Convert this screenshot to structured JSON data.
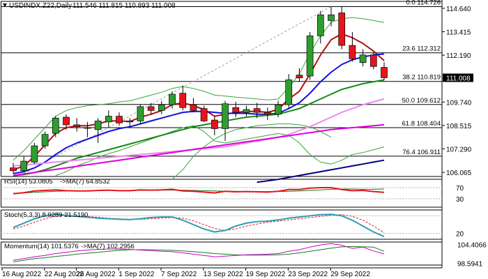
{
  "main_header": {
    "symbol": "USDINDX.Z22,Daily",
    "ohlc": "111.546 111.815 110.893 111.008"
  },
  "rsi_header": {
    "label": "RSI(14) 53.0805",
    "ma_label": "->MA(7) 64.8532"
  },
  "stoch_header": {
    "label": "Stoch(5,3,3) 8.9289 21.5190"
  },
  "momentum_header": {
    "label": "Momentum(14) 101.5376",
    "ma_label": "->MA(7) 102.2956"
  },
  "colors": {
    "up": "#2e9e2e",
    "down": "#e8141c",
    "ma_short": "#b01010",
    "ma_mid": "#1010e0",
    "ma_long": "#148a14",
    "ma_pink_light": "#ee88ee",
    "ma_magenta": "#dd00dd",
    "ma_navy": "#000080",
    "bollinger": "#3aa53a",
    "fibo": "#000000",
    "price_box": "#000000"
  },
  "chart_data": [
    {
      "type": "candlestick",
      "panel": "price",
      "title": "USDINDX.Z22,Daily",
      "x_tick_labels": [
        "16 Aug 2022",
        "22 Aug 2022",
        "26 Aug 2022",
        "1 Sep 2022",
        "7 Sep 2022",
        "13 Sep 2022",
        "19 Sep 2022",
        "23 Sep 2022",
        "29 Sep 2022"
      ],
      "y_tick_labels": [
        "114.640",
        "113.415",
        "112.190",
        "111.008",
        "109.740",
        "108.515",
        "107.290",
        "106.065"
      ],
      "ylim": [
        105.85,
        115.0
      ],
      "current_price": 111.008,
      "candles": [
        {
          "o": 106.3,
          "h": 106.55,
          "l": 106.0,
          "c": 106.15
        },
        {
          "o": 106.15,
          "h": 106.9,
          "l": 106.05,
          "c": 106.65
        },
        {
          "o": 106.6,
          "h": 107.6,
          "l": 106.5,
          "c": 107.45
        },
        {
          "o": 107.45,
          "h": 108.2,
          "l": 107.3,
          "c": 108.05
        },
        {
          "o": 108.1,
          "h": 109.0,
          "l": 107.9,
          "c": 108.9
        },
        {
          "o": 108.95,
          "h": 109.1,
          "l": 108.3,
          "c": 108.55
        },
        {
          "o": 108.55,
          "h": 108.9,
          "l": 108.2,
          "c": 108.45
        },
        {
          "o": 108.4,
          "h": 108.7,
          "l": 107.9,
          "c": 108.4
        },
        {
          "o": 108.3,
          "h": 108.9,
          "l": 107.6,
          "c": 108.75
        },
        {
          "o": 108.7,
          "h": 109.3,
          "l": 108.4,
          "c": 109.0
        },
        {
          "o": 109.0,
          "h": 109.2,
          "l": 108.5,
          "c": 108.65
        },
        {
          "o": 108.7,
          "h": 108.9,
          "l": 108.4,
          "c": 108.75
        },
        {
          "o": 108.75,
          "h": 109.6,
          "l": 108.6,
          "c": 109.5
        },
        {
          "o": 109.5,
          "h": 109.7,
          "l": 109.1,
          "c": 109.3
        },
        {
          "o": 109.3,
          "h": 109.8,
          "l": 109.1,
          "c": 109.6
        },
        {
          "o": 109.6,
          "h": 110.3,
          "l": 109.4,
          "c": 110.15
        },
        {
          "o": 110.2,
          "h": 110.6,
          "l": 109.3,
          "c": 109.45
        },
        {
          "o": 109.6,
          "h": 109.95,
          "l": 109.2,
          "c": 109.3
        },
        {
          "o": 109.4,
          "h": 109.55,
          "l": 108.7,
          "c": 108.75
        },
        {
          "o": 108.8,
          "h": 109.0,
          "l": 108.0,
          "c": 108.35
        },
        {
          "o": 108.35,
          "h": 109.8,
          "l": 107.7,
          "c": 109.65
        },
        {
          "o": 109.45,
          "h": 109.75,
          "l": 108.95,
          "c": 109.2
        },
        {
          "o": 109.2,
          "h": 109.55,
          "l": 109.0,
          "c": 109.35
        },
        {
          "o": 109.4,
          "h": 109.7,
          "l": 108.9,
          "c": 109.2
        },
        {
          "o": 109.2,
          "h": 109.45,
          "l": 108.8,
          "c": 109.1
        },
        {
          "o": 109.1,
          "h": 109.8,
          "l": 108.95,
          "c": 109.6
        },
        {
          "o": 109.6,
          "h": 111.2,
          "l": 109.4,
          "c": 110.9
        },
        {
          "o": 111.15,
          "h": 111.5,
          "l": 110.8,
          "c": 111.0
        },
        {
          "o": 111.1,
          "h": 113.4,
          "l": 110.9,
          "c": 113.2
        },
        {
          "o": 113.2,
          "h": 114.5,
          "l": 112.8,
          "c": 114.3
        },
        {
          "o": 114.0,
          "h": 114.7,
          "l": 113.7,
          "c": 114.3
        },
        {
          "o": 114.4,
          "h": 114.73,
          "l": 112.5,
          "c": 112.7
        },
        {
          "o": 112.7,
          "h": 113.4,
          "l": 111.85,
          "c": 112.0
        },
        {
          "o": 111.8,
          "h": 112.5,
          "l": 111.6,
          "c": 112.2
        },
        {
          "o": 112.2,
          "h": 112.35,
          "l": 111.45,
          "c": 111.6
        },
        {
          "o": 111.55,
          "h": 111.82,
          "l": 110.89,
          "c": 111.01
        }
      ],
      "moving_averages": [
        {
          "color": "#b01010",
          "values": [
            106.2,
            106.4,
            106.9,
            107.5,
            108.1,
            108.4,
            108.5,
            108.5,
            108.6,
            108.75,
            108.75,
            108.72,
            108.95,
            109.1,
            109.3,
            109.6,
            109.7,
            109.55,
            109.35,
            109.0,
            109.1,
            109.2,
            109.25,
            109.25,
            109.2,
            109.35,
            109.9,
            110.3,
            111.2,
            112.2,
            113.0,
            113.3,
            113.1,
            112.8,
            112.4,
            111.9
          ]
        },
        {
          "color": "#1010e0",
          "values": [
            106.0,
            106.1,
            106.3,
            106.6,
            107.0,
            107.35,
            107.6,
            107.8,
            108.0,
            108.2,
            108.35,
            108.45,
            108.6,
            108.75,
            108.9,
            109.05,
            109.2,
            109.25,
            109.25,
            109.2,
            109.15,
            109.15,
            109.15,
            109.1,
            109.1,
            109.15,
            109.4,
            109.7,
            110.2,
            110.8,
            111.3,
            111.7,
            111.95,
            112.1,
            112.2,
            112.25
          ]
        },
        {
          "color": "#148a14",
          "values": [
            105.9,
            105.95,
            106.05,
            106.2,
            106.4,
            106.6,
            106.8,
            106.95,
            107.1,
            107.25,
            107.4,
            107.55,
            107.7,
            107.85,
            108.0,
            108.15,
            108.3,
            108.45,
            108.55,
            108.65,
            108.75,
            108.85,
            108.95,
            109.0,
            109.05,
            109.1,
            109.25,
            109.4,
            109.65,
            109.9,
            110.15,
            110.4,
            110.55,
            110.7,
            110.8,
            110.9
          ]
        },
        {
          "color": "#ee88ee",
          "values": [
            106.4,
            106.45,
            106.5,
            106.55,
            106.6,
            106.65,
            106.7,
            106.75,
            106.8,
            106.85,
            106.9,
            106.95,
            107.0,
            107.05,
            107.1,
            107.15,
            107.2,
            107.25,
            107.3,
            107.35,
            107.4,
            107.5,
            107.6,
            107.7,
            107.8,
            107.9,
            108.05,
            108.25,
            108.45,
            108.7,
            108.95,
            109.2,
            109.4,
            109.6,
            109.75,
            109.9
          ]
        },
        {
          "color": "#dd00dd",
          "values": [
            105.9,
            105.98,
            106.06,
            106.14,
            106.22,
            106.3,
            106.38,
            106.46,
            106.54,
            106.62,
            106.7,
            106.78,
            106.86,
            106.94,
            107.02,
            107.1,
            107.18,
            107.26,
            107.34,
            107.42,
            107.5,
            107.58,
            107.66,
            107.74,
            107.82,
            107.9,
            107.98,
            108.06,
            108.14,
            108.22,
            108.3,
            108.35,
            108.4,
            108.45,
            108.5,
            108.55
          ]
        },
        {
          "color": "#000080",
          "start_index": 23,
          "values": [
            105.55,
            105.62,
            105.7,
            105.8,
            105.9,
            106.0,
            106.1,
            106.2,
            106.3,
            106.4,
            106.5,
            106.6,
            106.7
          ]
        }
      ],
      "bollinger": {
        "upper": [
          106.7,
          107.2,
          107.8,
          108.4,
          109.0,
          109.3,
          109.45,
          109.55,
          109.6,
          109.65,
          109.75,
          109.8,
          109.95,
          110.1,
          110.25,
          110.45,
          110.55,
          110.45,
          110.3,
          110.1,
          110.05,
          110.0,
          109.95,
          109.9,
          109.85,
          109.9,
          110.5,
          111.2,
          112.3,
          113.2,
          113.9,
          114.1,
          114.15,
          114.1,
          114.0,
          113.9
        ],
        "lower": [
          105.6,
          null,
          null,
          null,
          105.9,
          106.1,
          106.4,
          106.6,
          106.85,
          107.05,
          107.2,
          107.4,
          107.6,
          107.8,
          108.0,
          108.2,
          108.4,
          108.5,
          108.2,
          107.7,
          107.6,
          107.7,
          107.8,
          107.9,
          108.0,
          108.1,
          108.0,
          107.6,
          107.0,
          106.6,
          106.5,
          106.7,
          107.0,
          107.1,
          107.25,
          107.4
        ],
        "bottom_limb": {
          "start_index": 15,
          "values": [
            105.7,
            106.2,
            106.9,
            107.4,
            107.8,
            108.1,
            108.3,
            108.4,
            108.5,
            108.55,
            108.6,
            108.6,
            108.55,
            108.45,
            108.2,
            107.9
          ]
        }
      },
      "fibonacci_levels": [
        {
          "label": "0.0 114.726",
          "value": 114.726
        },
        {
          "label": "23.6 112.312",
          "value": 112.312
        },
        {
          "label": "38.2 110.819",
          "value": 110.819
        },
        {
          "label": "50.0 109.612",
          "value": 109.612
        },
        {
          "label": "61.8 108.404",
          "value": 108.404
        },
        {
          "label": "76.4 106.911",
          "value": 106.911
        }
      ],
      "trendline": {
        "start_index": 1,
        "start_value": 106.0,
        "end_index": 30,
        "end_value": 114.73
      }
    },
    {
      "type": "line",
      "panel": "rsi",
      "title": "RSI(14) 53.0805",
      "ylim": [
        0,
        100
      ],
      "y_tick_labels": [
        "70",
        "30"
      ],
      "levels": [
        70,
        30
      ],
      "series": [
        {
          "name": "RSI(14)",
          "values": [
            48,
            52,
            58,
            60,
            62,
            59,
            58,
            58,
            60,
            61,
            59,
            59,
            62,
            61,
            62,
            64,
            58,
            57,
            54,
            51,
            57,
            55,
            56,
            55,
            54,
            57,
            63,
            63,
            68,
            70,
            70,
            63,
            59,
            60,
            56,
            53
          ]
        },
        {
          "name": "MA(7)",
          "values": [
            50,
            51,
            53,
            55,
            57,
            58,
            58,
            59,
            59,
            60,
            60,
            60,
            60,
            60,
            61,
            61,
            61,
            60,
            59,
            58,
            57,
            57,
            56,
            56,
            56,
            56,
            57,
            58,
            60,
            62,
            64,
            65,
            65,
            64,
            64,
            65
          ]
        }
      ]
    },
    {
      "type": "line",
      "panel": "stochastic",
      "title": "Stoch(5,3,3) 8.9289 21.5190",
      "ylim": [
        0,
        100
      ],
      "y_tick_labels": [
        "20"
      ],
      "levels": [
        80,
        20
      ],
      "series": [
        {
          "name": "%K",
          "values": [
            40,
            55,
            70,
            80,
            85,
            82,
            78,
            75,
            72,
            70,
            68,
            67,
            70,
            74,
            76,
            76,
            65,
            50,
            35,
            25,
            30,
            45,
            55,
            60,
            62,
            66,
            72,
            76,
            80,
            84,
            85,
            80,
            65,
            45,
            25,
            9
          ]
        },
        {
          "name": "%D",
          "values": [
            35,
            45,
            58,
            70,
            78,
            82,
            80,
            78,
            75,
            72,
            70,
            68,
            68,
            70,
            72,
            74,
            72,
            63,
            50,
            37,
            30,
            35,
            45,
            52,
            58,
            62,
            66,
            70,
            74,
            78,
            82,
            84,
            78,
            65,
            45,
            22
          ]
        }
      ]
    },
    {
      "type": "line",
      "panel": "momentum",
      "title": "Momentum(14) 101.5376",
      "ylim": [
        98.0,
        105.2
      ],
      "y_tick_labels": [
        "104.4066",
        "98.5941"
      ],
      "series": [
        {
          "name": "Momentum(14)",
          "values": [
            99.5,
            100.0,
            100.6,
            101.0,
            101.6,
            102.0,
            102.4,
            102.7,
            102.9,
            103.0,
            103.0,
            102.9,
            102.7,
            102.5,
            102.3,
            102.2,
            101.8,
            101.4,
            101.0,
            100.6,
            100.8,
            101.0,
            101.2,
            101.3,
            101.4,
            101.6,
            102.3,
            102.8,
            103.6,
            104.3,
            104.7,
            104.2,
            103.2,
            103.6,
            102.4,
            101.5
          ]
        },
        {
          "name": "MA(7)",
          "values": [
            99.0,
            99.5,
            100.0,
            100.3,
            100.7,
            101.0,
            101.4,
            101.7,
            102.0,
            102.3,
            102.6,
            102.8,
            102.8,
            102.8,
            102.7,
            102.6,
            102.4,
            102.2,
            101.9,
            101.6,
            101.4,
            101.2,
            101.1,
            101.1,
            101.1,
            101.2,
            101.4,
            101.8,
            102.3,
            102.8,
            103.3,
            103.7,
            103.8,
            103.7,
            103.6,
            102.3
          ]
        }
      ]
    }
  ]
}
